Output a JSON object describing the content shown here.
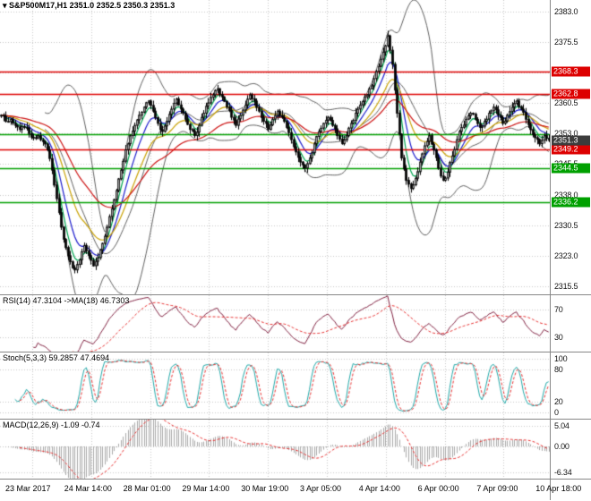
{
  "title_bar": {
    "symbol_title": "S&P500M17,H1 2351.0 2352.5 2350.3 2351.3",
    "chart_icon": "▾"
  },
  "panels": {
    "rsi_label": "RSI(14) 47.3104  ->MA(18) 46.7303",
    "stoch_label": "Stoch(5,3,3) 59.2857 47.4694",
    "macd_label": "MACD(12,26,9) -1.09 -0.74"
  },
  "colors": {
    "background": "#ffffff",
    "grid": "#c6c6c6",
    "panel_border": "#878787",
    "axis_text": "#111111"
  },
  "chart_data": {
    "type": "candlestick",
    "symbol": "S&P500M17",
    "timeframe": "H1",
    "last_quote": {
      "open": 2351.0,
      "high": 2352.5,
      "low": 2350.3,
      "close": 2351.3
    },
    "x_labels": [
      "23 Mar 2017",
      "24 Mar 14:00",
      "28 Mar 01:00",
      "29 Mar 14:00",
      "30 Mar 19:00",
      "3 Apr 05:00",
      "4 Apr 14:00",
      "6 Apr 00:00",
      "7 Apr 09:00",
      "10 Apr 18:00"
    ],
    "main": {
      "ylim": [
        2313.5,
        2385.8
      ],
      "yticks": [
        "2383.0",
        "2375.5",
        "2368.0",
        "2360.5",
        "2353.0",
        "2345.5",
        "2338.0",
        "2330.5",
        "2323.0",
        "2315.5"
      ],
      "closes_estimated": [
        2357.5,
        2356.0,
        2356.5,
        2355.0,
        2354.0,
        2354.5,
        2353.0,
        2352.0,
        2352.5,
        2351.0,
        2349.0,
        2344.0,
        2337.0,
        2330.0,
        2325.0,
        2321.5,
        2319.5,
        2322.0,
        2325.5,
        2323.0,
        2320.5,
        2322.5,
        2326.0,
        2330.0,
        2334.5,
        2339.0,
        2344.0,
        2349.0,
        2352.5,
        2355.0,
        2357.5,
        2359.5,
        2361.0,
        2358.5,
        2355.5,
        2353.5,
        2356.0,
        2359.0,
        2361.5,
        2359.0,
        2356.5,
        2354.0,
        2352.5,
        2355.0,
        2358.0,
        2360.5,
        2362.5,
        2364.0,
        2362.0,
        2359.5,
        2357.0,
        2355.0,
        2357.5,
        2360.0,
        2362.5,
        2361.0,
        2358.5,
        2356.0,
        2354.0,
        2356.5,
        2358.5,
        2357.0,
        2354.5,
        2351.5,
        2348.5,
        2346.0,
        2344.5,
        2347.0,
        2350.5,
        2353.5,
        2355.5,
        2357.0,
        2355.0,
        2352.5,
        2350.5,
        2352.5,
        2355.5,
        2358.0,
        2360.0,
        2362.0,
        2364.0,
        2366.5,
        2369.5,
        2373.0,
        2377.0,
        2370.0,
        2358.0,
        2347.0,
        2341.5,
        2339.5,
        2342.0,
        2346.0,
        2350.0,
        2352.5,
        2349.0,
        2344.5,
        2341.5,
        2343.5,
        2347.5,
        2351.5,
        2354.5,
        2356.5,
        2358.0,
        2356.5,
        2354.5,
        2356.0,
        2358.0,
        2359.5,
        2357.5,
        2355.5,
        2357.5,
        2359.5,
        2361.0,
        2359.0,
        2356.5,
        2354.0,
        2352.0,
        2350.5,
        2352.5,
        2351.3
      ],
      "interpolate": 2,
      "wick_amplitude": 1.1,
      "bollinger": {
        "period": 20,
        "deviation": 2,
        "color": "#606060"
      },
      "moving_averages": [
        {
          "period": 5,
          "color": "#00a550"
        },
        {
          "period": 10,
          "color": "#1a1acc"
        },
        {
          "period": 20,
          "color": "#c8a000"
        },
        {
          "period": 45,
          "color": "#cc1111"
        }
      ],
      "hlines": [
        {
          "price": "2368.3",
          "color": "#dd0000",
          "tagged": true
        },
        {
          "price": "2362.8",
          "color": "#dd0000",
          "tagged": true
        },
        {
          "price": "2352.9",
          "color": "#00a000",
          "tagged": false
        },
        {
          "price": "2349.2",
          "color": "#dd0000",
          "tagged": true
        },
        {
          "price": "2344.5",
          "color": "#00a000",
          "tagged": true
        },
        {
          "price": "2336.2",
          "color": "#00a000",
          "tagged": true
        }
      ],
      "current_price_tag": {
        "price": "2351.3",
        "color": "#3c3c3c"
      },
      "candle_up_fill": "#ffffff",
      "candle_down_fill": "#000000",
      "candle_border": "#000000"
    },
    "rsi": {
      "period": 14,
      "ma_period": 18,
      "current": 47.3104,
      "ma_current": 46.7303,
      "ylim": [
        10,
        90
      ],
      "yticks": [
        70,
        30
      ],
      "line_color": "#802040",
      "ma_color": "#e83030"
    },
    "stoch": {
      "k_period": 5,
      "slowing": 3,
      "d_period": 3,
      "current_k": 59.2857,
      "current_d": 47.4694,
      "ylim": [
        -12,
        112
      ],
      "yticks": [
        100,
        80,
        20,
        0
      ],
      "k_color": "#20a8a8",
      "d_color": "#e83030"
    },
    "macd": {
      "fast": 12,
      "slow": 26,
      "signal_period": 9,
      "current": -1.09,
      "current_signal": -0.74,
      "ylim": [
        -7.8,
        6.5
      ],
      "yticks": [
        "5.04",
        "0.00",
        "-6.34"
      ],
      "hist_color": "#a8a8a8",
      "signal_color": "#e83030"
    }
  }
}
